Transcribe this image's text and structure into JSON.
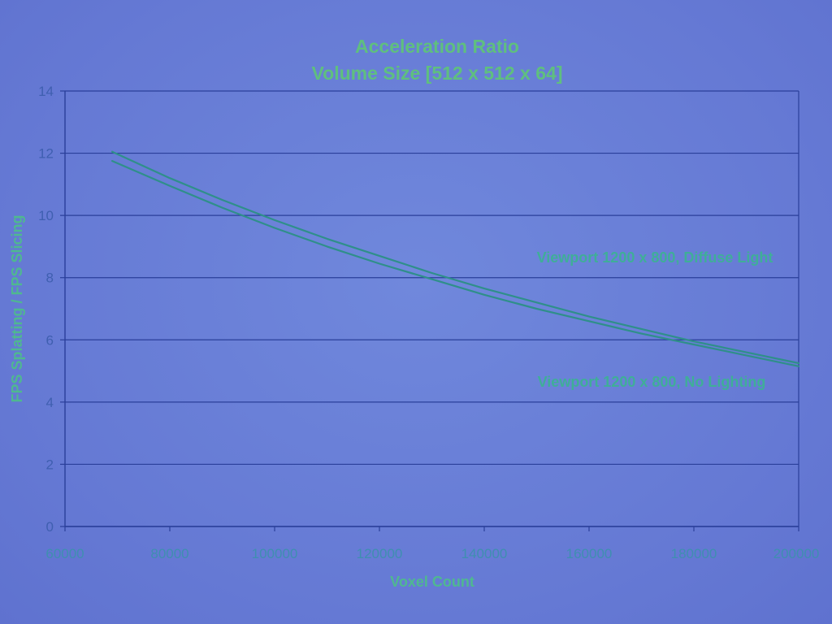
{
  "chart_data": {
    "type": "line",
    "title": "Acceleration Ratio",
    "subtitle": "Volume Size [512 x 512 x 64]",
    "xlabel": "Voxel Count",
    "ylabel": "FPS Splatting / FPS Slicing",
    "xlim": [
      60000,
      200000
    ],
    "ylim": [
      0,
      14
    ],
    "x_ticks": [
      60000,
      80000,
      100000,
      120000,
      140000,
      160000,
      180000,
      200000
    ],
    "y_ticks": [
      0,
      2,
      4,
      6,
      8,
      10,
      12,
      14
    ],
    "grid": true,
    "series": [
      {
        "name": "Viewport 1200 x 800, Diffuse Light",
        "x": [
          69000,
          80000,
          90000,
          100000,
          110000,
          120000,
          130000,
          140000,
          150000,
          160000,
          170000,
          180000,
          190000,
          200000
        ],
        "y": [
          12.05,
          11.2,
          10.5,
          9.85,
          9.25,
          8.7,
          8.15,
          7.65,
          7.2,
          6.75,
          6.35,
          5.95,
          5.6,
          5.25
        ]
      },
      {
        "name": "Viewport 1200 x 800, No Lighting",
        "x": [
          69000,
          80000,
          90000,
          100000,
          110000,
          120000,
          130000,
          140000,
          150000,
          160000,
          170000,
          180000,
          190000,
          200000
        ],
        "y": [
          11.75,
          10.95,
          10.25,
          9.6,
          9.0,
          8.45,
          7.95,
          7.45,
          7.0,
          6.6,
          6.2,
          5.85,
          5.5,
          5.15
        ]
      }
    ],
    "colors": {
      "line": "#2f8f8a",
      "grid": "#2a3f9a",
      "title": "#5fbf7f"
    }
  }
}
